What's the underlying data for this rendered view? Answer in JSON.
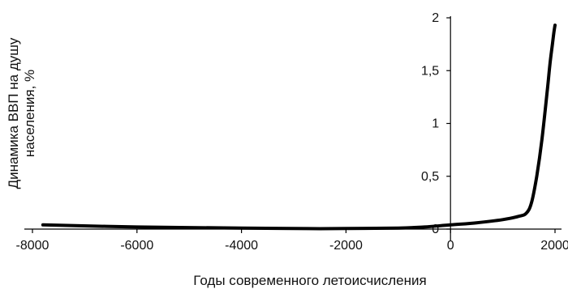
{
  "chart_data": {
    "type": "line",
    "title": "",
    "xlabel": "Годы современного летоисчисления",
    "ylabel_lines": [
      "Динамика ВВП на душу",
      "населения, %"
    ],
    "xlim": [
      -8000,
      2000
    ],
    "ylim": [
      0,
      2
    ],
    "x_ticks": [
      -8000,
      -6000,
      -4000,
      -2000,
      0,
      2000
    ],
    "x_tick_labels": [
      "-8000",
      "-6000",
      "-4000",
      "-2000",
      "0",
      "2000"
    ],
    "y_ticks": [
      0,
      0.5,
      1,
      1.5,
      2
    ],
    "y_tick_labels": [
      "0",
      "0,5",
      "1",
      "1,5",
      "2"
    ],
    "grid": false,
    "legend": "none",
    "series_color": "#000000",
    "series": [
      {
        "x": [
          -7800,
          -6000,
          -4000,
          -3000,
          -2000,
          -1000,
          -500,
          0,
          500,
          1000,
          1300,
          1450,
          1550,
          1650,
          1750,
          1850,
          1900,
          1950,
          1975,
          2000
        ],
        "y": [
          0.04,
          0.02,
          0.01,
          0.005,
          0.005,
          0.01,
          0.02,
          0.04,
          0.06,
          0.09,
          0.12,
          0.15,
          0.25,
          0.5,
          0.85,
          1.3,
          1.55,
          1.75,
          1.85,
          1.93
        ]
      }
    ]
  }
}
